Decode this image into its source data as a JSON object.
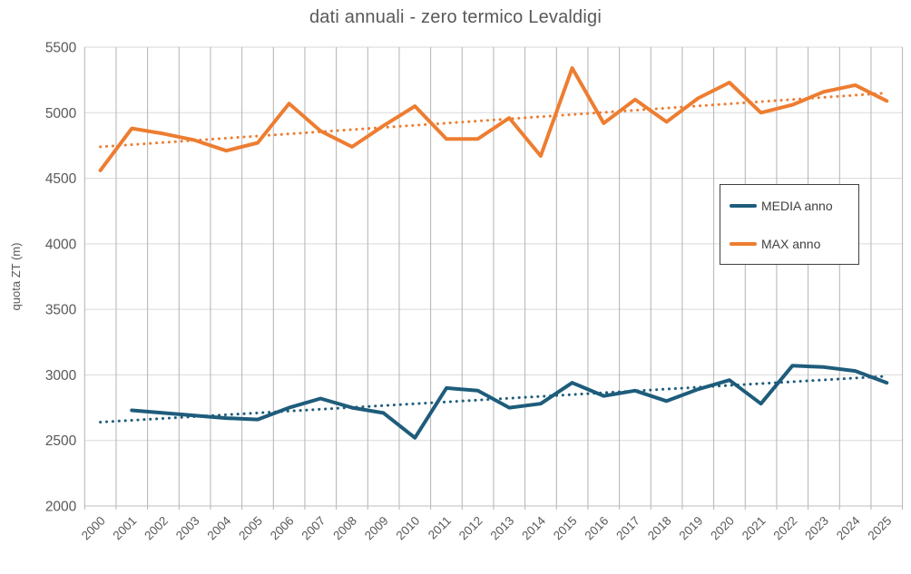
{
  "title": "dati annuali - zero termico Levaldigi",
  "colors": {
    "media_blue": "#1E5C7B",
    "max_orange": "#ED7D31",
    "grid_horizontal": "#D9D9D9",
    "grid_vertical": "#B3B3B3",
    "text_gray": "#595959",
    "legend_border": "#404040"
  },
  "chart_data": {
    "type": "line",
    "title": "dati annuali - zero termico Levaldigi",
    "xlabel": "",
    "ylabel": "quota ZT (m)",
    "ylim": [
      2000,
      5500
    ],
    "ytick_step": 500,
    "grid": "both",
    "legend_position": "right-middle",
    "x": [
      2000,
      2001,
      2002,
      2003,
      2004,
      2005,
      2006,
      2007,
      2008,
      2009,
      2010,
      2011,
      2012,
      2013,
      2014,
      2015,
      2016,
      2017,
      2018,
      2019,
      2020,
      2021,
      2022,
      2023,
      2024,
      2025
    ],
    "series": [
      {
        "name": "MEDIA anno",
        "color": "#1E5C7B",
        "values": [
          null,
          2730,
          2710,
          2690,
          2670,
          2660,
          2750,
          2820,
          2750,
          2710,
          2520,
          2900,
          2880,
          2750,
          2780,
          2940,
          2840,
          2880,
          2800,
          2890,
          2960,
          2780,
          3070,
          3060,
          3030,
          2940
        ]
      },
      {
        "name": "MAX anno",
        "color": "#ED7D31",
        "values": [
          4560,
          4880,
          4840,
          4790,
          4710,
          4770,
          5070,
          4860,
          4740,
          4900,
          5050,
          4800,
          4800,
          4960,
          4670,
          5340,
          4920,
          5100,
          4930,
          5110,
          5230,
          5000,
          5060,
          5160,
          5210,
          5090
        ]
      }
    ],
    "trendlines": [
      {
        "name": "MEDIA anno trend",
        "color": "#1E5C7B",
        "start": 2640,
        "end": 2990
      },
      {
        "name": "MAX anno trend",
        "color": "#ED7D31",
        "start": 4740,
        "end": 5150
      }
    ]
  }
}
